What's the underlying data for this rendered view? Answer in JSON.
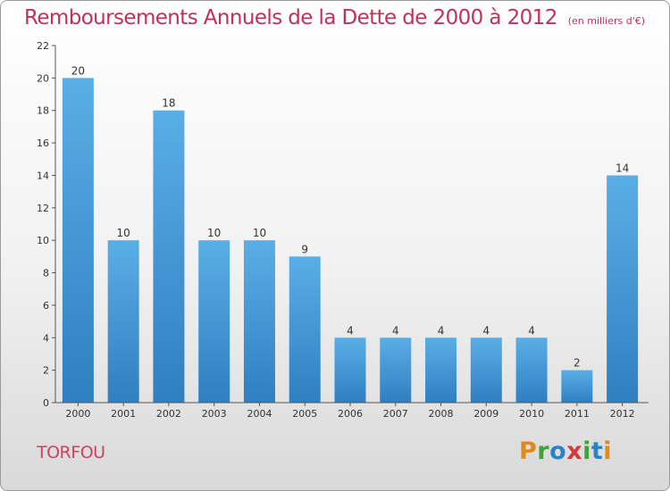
{
  "title": "Remboursements Annuels de la Dette de 2000 à 2012",
  "unit": "(en milliers d'€)",
  "commune": "TORFOU",
  "logo": "Proxiti",
  "colors": {
    "title": "#c0305a",
    "bar_top": "#5aaee6",
    "bar_bottom": "#2f7fc1",
    "commune": "#d04060"
  },
  "chart_data": {
    "type": "bar",
    "title": "Remboursements Annuels de la Dette de 2000 à 2012",
    "ylabel": "(en milliers d'€)",
    "xlabel": "",
    "categories": [
      "2000",
      "2001",
      "2002",
      "2003",
      "2004",
      "2005",
      "2006",
      "2007",
      "2008",
      "2009",
      "2010",
      "2011",
      "2012"
    ],
    "values": [
      20,
      10,
      18,
      10,
      10,
      9,
      4,
      4,
      4,
      4,
      4,
      2,
      14
    ],
    "ylim": [
      0,
      22
    ],
    "yticks": [
      0,
      2,
      4,
      6,
      8,
      10,
      12,
      14,
      16,
      18,
      20,
      22
    ],
    "grid": false,
    "legend": "none"
  }
}
